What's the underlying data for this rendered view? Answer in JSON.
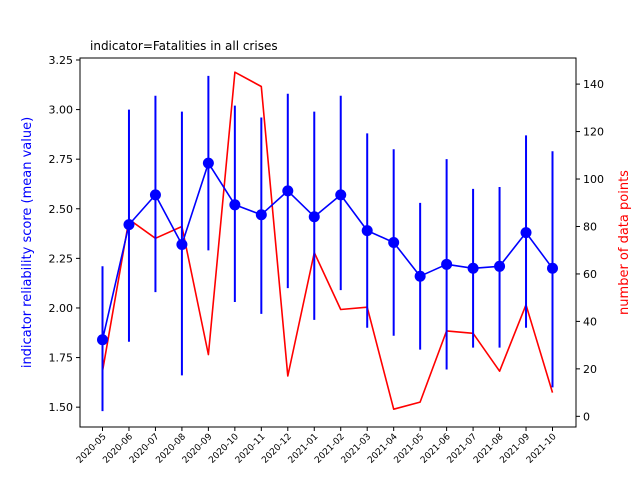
{
  "chart_data": {
    "type": "line",
    "title": "indicator=Fatalities in all crises",
    "categories": [
      "2020-05",
      "2020-06",
      "2020-07",
      "2020-08",
      "2020-09",
      "2020-10",
      "2020-11",
      "2020-12",
      "2021-01",
      "2021-02",
      "2021-03",
      "2021-04",
      "2021-05",
      "2021-06",
      "2021-07",
      "2021-08",
      "2021-09",
      "2021-10"
    ],
    "left_axis": {
      "label": "indicator reliability score (mean value)",
      "ylim": [
        1.4,
        3.26
      ],
      "ticks": [
        "1.50",
        "1.75",
        "2.00",
        "2.25",
        "2.50",
        "2.75",
        "3.00",
        "3.25"
      ],
      "color": "#0000ff"
    },
    "right_axis": {
      "label": "number of data points",
      "ylim": [
        -4.5,
        151
      ],
      "ticks": [
        "0",
        "20",
        "40",
        "60",
        "80",
        "100",
        "120",
        "140"
      ],
      "color": "#ff0000"
    },
    "series": [
      {
        "axis": "left",
        "style": "line-markers-errorbars",
        "color": "#0000ff",
        "values": [
          1.84,
          2.42,
          2.57,
          2.32,
          2.73,
          2.52,
          2.47,
          2.59,
          2.46,
          2.57,
          2.39,
          2.33,
          2.16,
          2.22,
          2.2,
          2.21,
          2.38,
          2.2
        ],
        "err_low": [
          1.48,
          1.83,
          2.08,
          1.66,
          2.29,
          2.03,
          1.97,
          2.1,
          1.94,
          2.09,
          1.9,
          1.86,
          1.79,
          1.69,
          1.8,
          1.8,
          1.9,
          1.6
        ],
        "err_high": [
          2.21,
          3.0,
          3.07,
          2.99,
          3.17,
          3.02,
          2.96,
          3.08,
          2.99,
          3.07,
          2.88,
          2.8,
          2.53,
          2.75,
          2.6,
          2.61,
          2.87,
          2.79
        ]
      },
      {
        "axis": "right",
        "style": "line",
        "color": "#ff0000",
        "values": [
          19,
          83,
          75,
          80,
          26,
          145,
          139,
          17,
          69,
          45,
          46,
          3,
          6,
          36,
          35,
          19,
          47,
          10
        ]
      }
    ],
    "grid": false
  }
}
